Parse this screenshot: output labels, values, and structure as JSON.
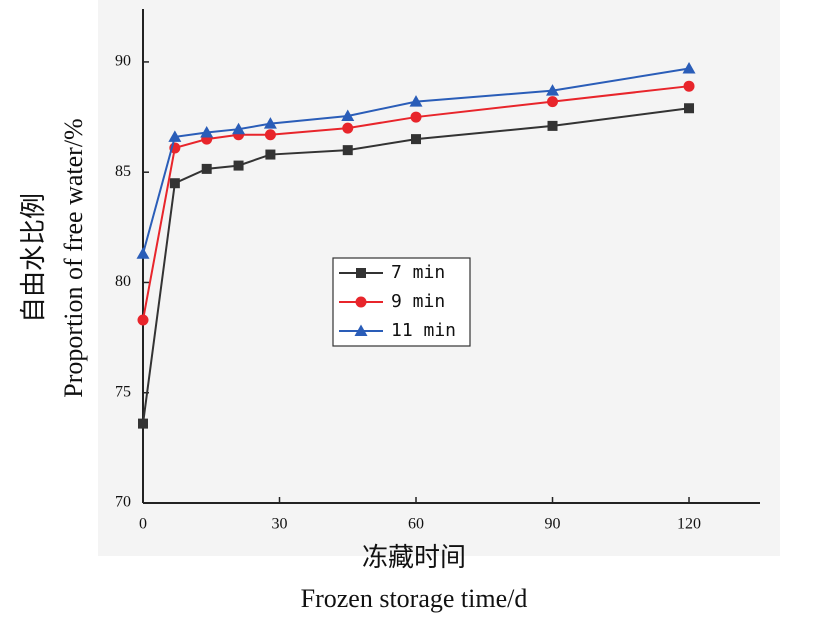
{
  "chart_data": {
    "type": "line",
    "x_label_zh": "冻藏时间",
    "x_label": "Frozen storage time/d",
    "y_label_zh": "自由水比例",
    "y_label": "Proportion of free water/%",
    "x": [
      0,
      7,
      14,
      21,
      28,
      45,
      60,
      90,
      120
    ],
    "series": [
      {
        "name": "7 min",
        "color": "#333333",
        "marker": "square",
        "values": [
          73.6,
          84.5,
          85.15,
          85.3,
          85.8,
          86.0,
          86.5,
          87.1,
          87.9
        ]
      },
      {
        "name": "9 min",
        "color": "#e8252b",
        "marker": "circle",
        "values": [
          78.3,
          86.1,
          86.5,
          86.7,
          86.7,
          87.0,
          87.5,
          88.2,
          88.9
        ]
      },
      {
        "name": "11 min",
        "color": "#2a5db8",
        "marker": "triangle",
        "values": [
          81.3,
          86.6,
          86.8,
          86.95,
          87.2,
          87.55,
          88.2,
          88.7,
          89.7
        ]
      }
    ],
    "xlim": [
      0,
      135.6
    ],
    "xticks": [
      0,
      30,
      60,
      90,
      120
    ],
    "ylim": [
      70,
      92.4
    ],
    "yticks": [
      70,
      75,
      80,
      85,
      90
    ],
    "legend": "center"
  }
}
